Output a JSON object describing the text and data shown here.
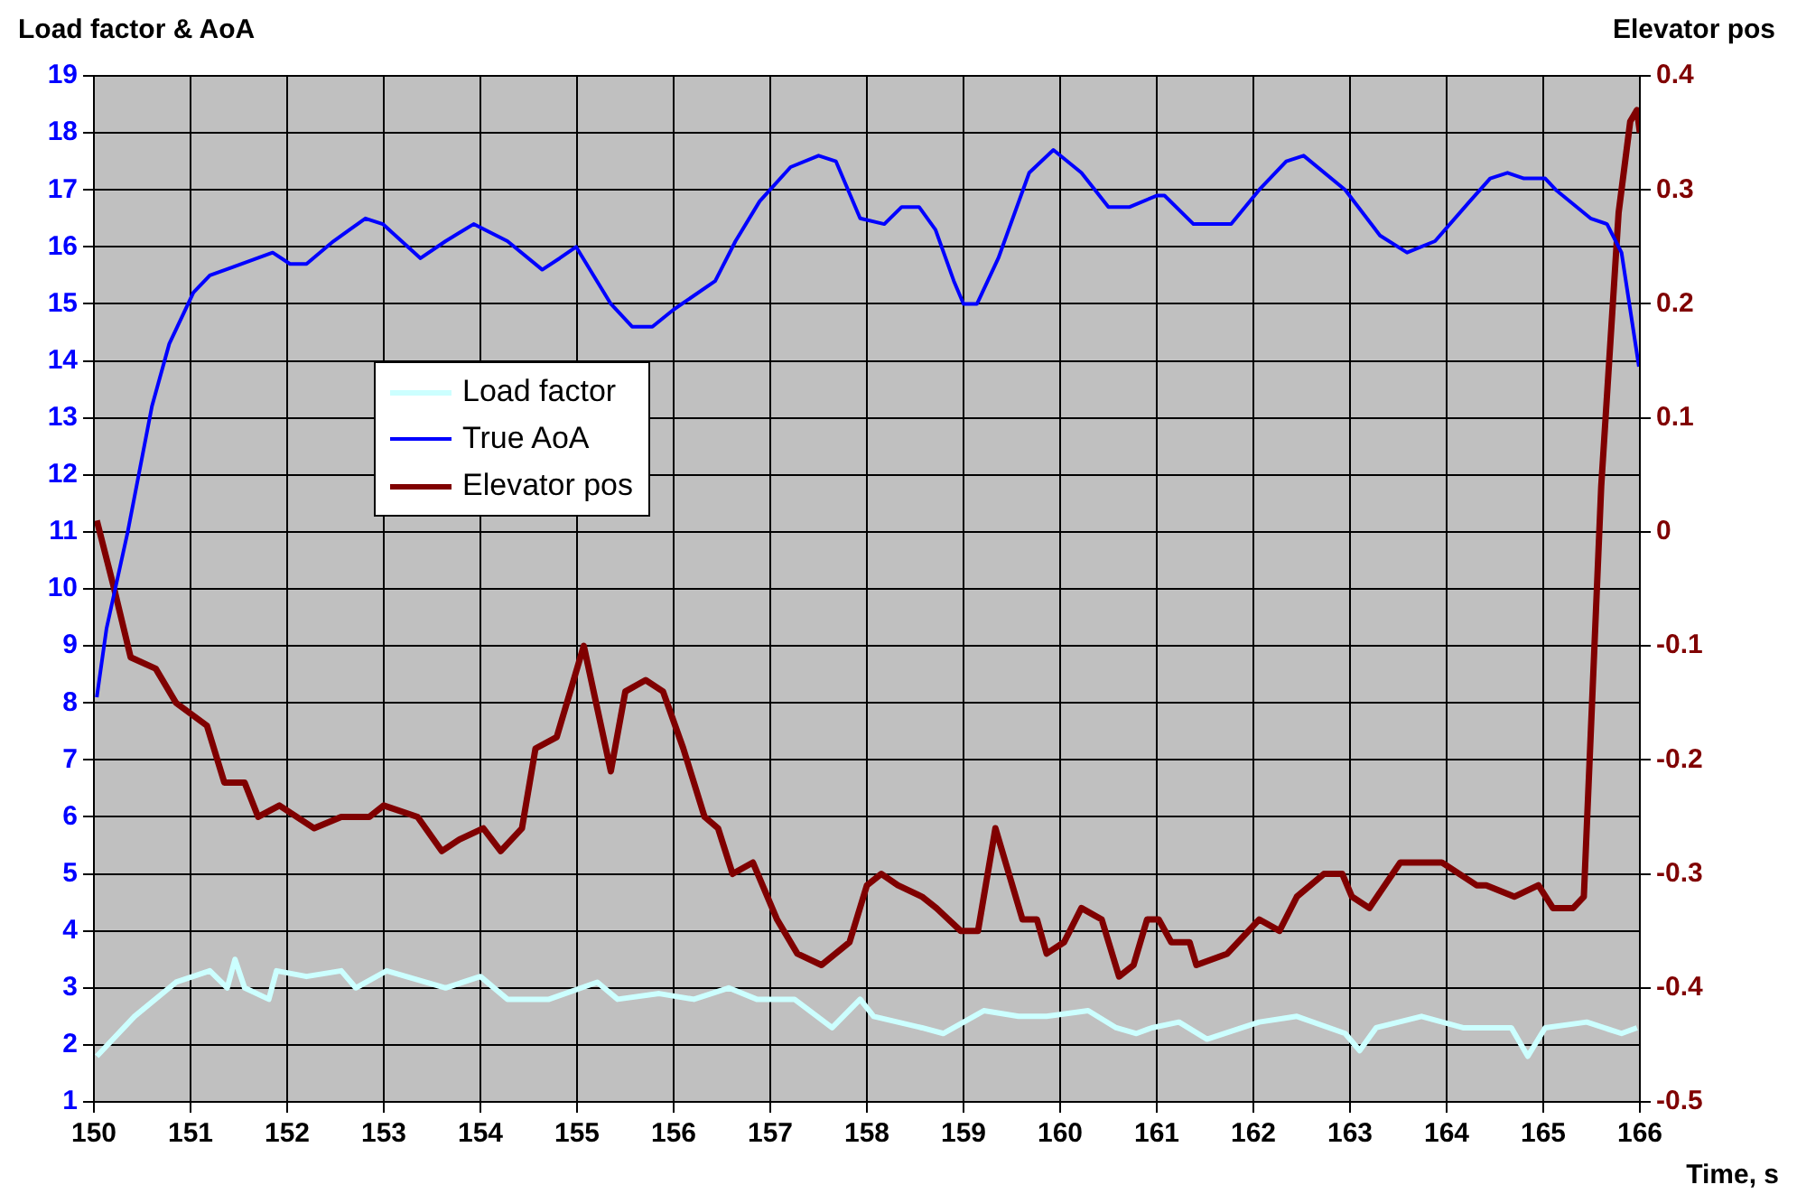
{
  "chart_data": {
    "type": "line",
    "ylabel": "Load factor & AoA",
    "y2label": "Elevator pos",
    "xlabel": "Time, s",
    "xlim": [
      150,
      166
    ],
    "xticks": [
      150,
      151,
      152,
      153,
      154,
      155,
      156,
      157,
      158,
      159,
      160,
      161,
      162,
      163,
      164,
      165,
      166
    ],
    "ylim": [
      1,
      19
    ],
    "yticks": [
      1,
      2,
      3,
      4,
      5,
      6,
      7,
      8,
      9,
      10,
      11,
      12,
      13,
      14,
      15,
      16,
      17,
      18,
      19
    ],
    "y2lim": [
      -0.5,
      0.4
    ],
    "y2ticks": [
      -0.5,
      -0.4,
      -0.3,
      -0.2,
      -0.1,
      0,
      0.1,
      0.2,
      0.3,
      0.4
    ],
    "grid": true,
    "legend": "center left",
    "marker": "none",
    "line_style": "solid",
    "series": [
      {
        "name": "Load factor",
        "color": "#ccffff",
        "x": [
          150.03,
          150.42,
          150.85,
          151.2,
          151.38,
          151.46,
          151.56,
          151.81,
          151.89,
          152.2,
          152.56,
          152.71,
          153.03,
          153.64,
          154.0,
          154.28,
          154.71,
          155.21,
          155.42,
          155.85,
          156.21,
          156.57,
          156.86,
          157.25,
          157.64,
          157.93,
          158.07,
          158.57,
          158.79,
          159.21,
          159.57,
          159.86,
          160.29,
          160.58,
          160.79,
          160.95,
          161.23,
          161.52,
          162.06,
          162.45,
          162.95,
          163.1,
          163.27,
          163.74,
          164.17,
          164.67,
          164.84,
          165.02,
          165.45,
          165.81,
          165.97
        ],
        "values": [
          1.8,
          2.5,
          3.1,
          3.3,
          3.0,
          3.5,
          3.0,
          2.8,
          3.3,
          3.2,
          3.3,
          3.0,
          3.3,
          3.0,
          3.2,
          2.8,
          2.8,
          3.1,
          2.8,
          2.9,
          2.8,
          3.0,
          2.8,
          2.8,
          2.3,
          2.8,
          2.5,
          2.3,
          2.2,
          2.6,
          2.5,
          2.5,
          2.6,
          2.3,
          2.2,
          2.3,
          2.4,
          2.1,
          2.4,
          2.5,
          2.2,
          1.9,
          2.3,
          2.5,
          2.3,
          2.3,
          1.8,
          2.3,
          2.4,
          2.2,
          2.3
        ]
      },
      {
        "name": "True AoA",
        "color": "#0000ff",
        "x": [
          150.03,
          150.13,
          150.35,
          150.6,
          150.78,
          151.03,
          151.2,
          151.85,
          152.03,
          152.2,
          152.48,
          152.81,
          152.99,
          153.38,
          153.64,
          153.93,
          154.28,
          154.64,
          154.82,
          154.99,
          155.35,
          155.57,
          155.78,
          156.0,
          156.43,
          156.64,
          156.89,
          157.21,
          157.5,
          157.68,
          157.93,
          158.18,
          158.36,
          158.54,
          158.71,
          158.9,
          159.0,
          159.14,
          159.36,
          159.68,
          159.93,
          160.22,
          160.5,
          160.72,
          161.0,
          161.08,
          161.38,
          161.77,
          162.06,
          162.34,
          162.52,
          162.95,
          163.31,
          163.59,
          163.88,
          164.24,
          164.45,
          164.63,
          164.8,
          165.02,
          165.13,
          165.49,
          165.66,
          165.81,
          165.99
        ],
        "values": [
          8.1,
          9.3,
          11.0,
          13.2,
          14.3,
          15.2,
          15.5,
          15.9,
          15.7,
          15.7,
          16.1,
          16.5,
          16.4,
          15.8,
          16.1,
          16.4,
          16.1,
          15.6,
          15.8,
          16.0,
          15.0,
          14.6,
          14.6,
          14.9,
          15.4,
          16.1,
          16.8,
          17.4,
          17.6,
          17.5,
          16.5,
          16.4,
          16.7,
          16.7,
          16.3,
          15.4,
          15.0,
          15.0,
          15.8,
          17.3,
          17.7,
          17.3,
          16.7,
          16.7,
          16.9,
          16.9,
          16.4,
          16.4,
          17.0,
          17.5,
          17.6,
          17.0,
          16.2,
          15.9,
          16.1,
          16.8,
          17.2,
          17.3,
          17.2,
          17.2,
          17.0,
          16.5,
          16.4,
          15.9,
          13.9
        ]
      },
      {
        "name": "Elevator pos",
        "color": "#800000",
        "axis": "y2",
        "x": [
          150.03,
          150.21,
          150.38,
          150.64,
          150.85,
          151.17,
          151.35,
          151.56,
          151.7,
          151.92,
          152.28,
          152.56,
          152.85,
          153.0,
          153.35,
          153.6,
          153.78,
          154.03,
          154.21,
          154.43,
          154.57,
          154.79,
          155.07,
          155.35,
          155.5,
          155.71,
          155.89,
          156.1,
          156.32,
          156.46,
          156.61,
          156.82,
          157.07,
          157.28,
          157.53,
          157.82,
          158.0,
          158.15,
          158.32,
          158.57,
          158.72,
          158.97,
          159.15,
          159.33,
          159.47,
          159.61,
          159.76,
          159.86,
          160.04,
          160.22,
          160.43,
          160.61,
          160.76,
          160.9,
          161.02,
          161.15,
          161.34,
          161.41,
          161.73,
          162.06,
          162.27,
          162.45,
          162.73,
          162.92,
          163.02,
          163.2,
          163.52,
          163.95,
          164.31,
          164.41,
          164.7,
          164.95,
          165.1,
          165.31,
          165.42,
          165.6,
          165.78,
          165.9,
          165.97,
          166.0
        ],
        "values": [
          0.01,
          -0.05,
          -0.11,
          -0.12,
          -0.15,
          -0.17,
          -0.22,
          -0.22,
          -0.25,
          -0.24,
          -0.26,
          -0.25,
          -0.25,
          -0.24,
          -0.25,
          -0.28,
          -0.27,
          -0.26,
          -0.28,
          -0.26,
          -0.19,
          -0.18,
          -0.1,
          -0.21,
          -0.14,
          -0.13,
          -0.14,
          -0.19,
          -0.25,
          -0.26,
          -0.3,
          -0.29,
          -0.34,
          -0.37,
          -0.38,
          -0.36,
          -0.31,
          -0.3,
          -0.31,
          -0.32,
          -0.33,
          -0.35,
          -0.35,
          -0.26,
          -0.3,
          -0.34,
          -0.34,
          -0.37,
          -0.36,
          -0.33,
          -0.34,
          -0.39,
          -0.38,
          -0.34,
          -0.34,
          -0.36,
          -0.36,
          -0.38,
          -0.37,
          -0.34,
          -0.35,
          -0.32,
          -0.3,
          -0.3,
          -0.32,
          -0.33,
          -0.29,
          -0.29,
          -0.31,
          -0.31,
          -0.32,
          -0.31,
          -0.33,
          -0.33,
          -0.32,
          0.04,
          0.28,
          0.36,
          0.37,
          0.35
        ]
      }
    ]
  }
}
